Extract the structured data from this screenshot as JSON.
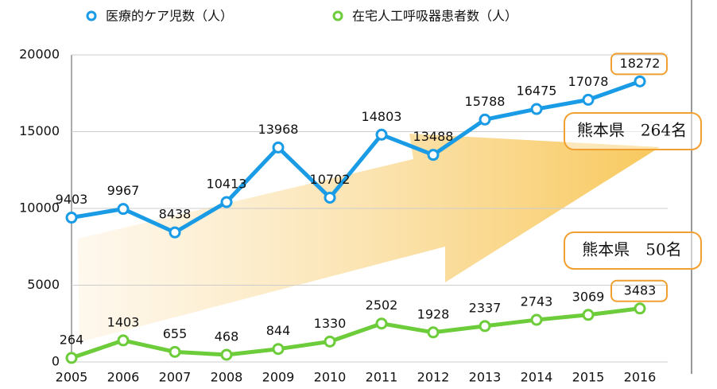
{
  "chart_data": {
    "type": "line",
    "categories": [
      "2005",
      "2006",
      "2007",
      "2008",
      "2009",
      "2010",
      "2011",
      "2012",
      "2013",
      "2014",
      "2015",
      "2016"
    ],
    "series": [
      {
        "name": "医療的ケア児数（人）",
        "color": "#1a9be6",
        "values": [
          9403,
          9967,
          8438,
          10413,
          13968,
          10702,
          14803,
          13488,
          15788,
          16475,
          17078,
          18272
        ]
      },
      {
        "name": "在宅人工呼吸器患者数（人）",
        "color": "#6ccc3a",
        "values": [
          264,
          1403,
          655,
          468,
          844,
          1330,
          2502,
          1928,
          2337,
          2743,
          3069,
          3483
        ]
      }
    ],
    "ylim": [
      0,
      20000
    ],
    "yticks": [
      0,
      5000,
      10000,
      15000,
      20000
    ],
    "grid": true,
    "annotations": [
      "熊本県　264名",
      "熊本県　50名"
    ]
  }
}
